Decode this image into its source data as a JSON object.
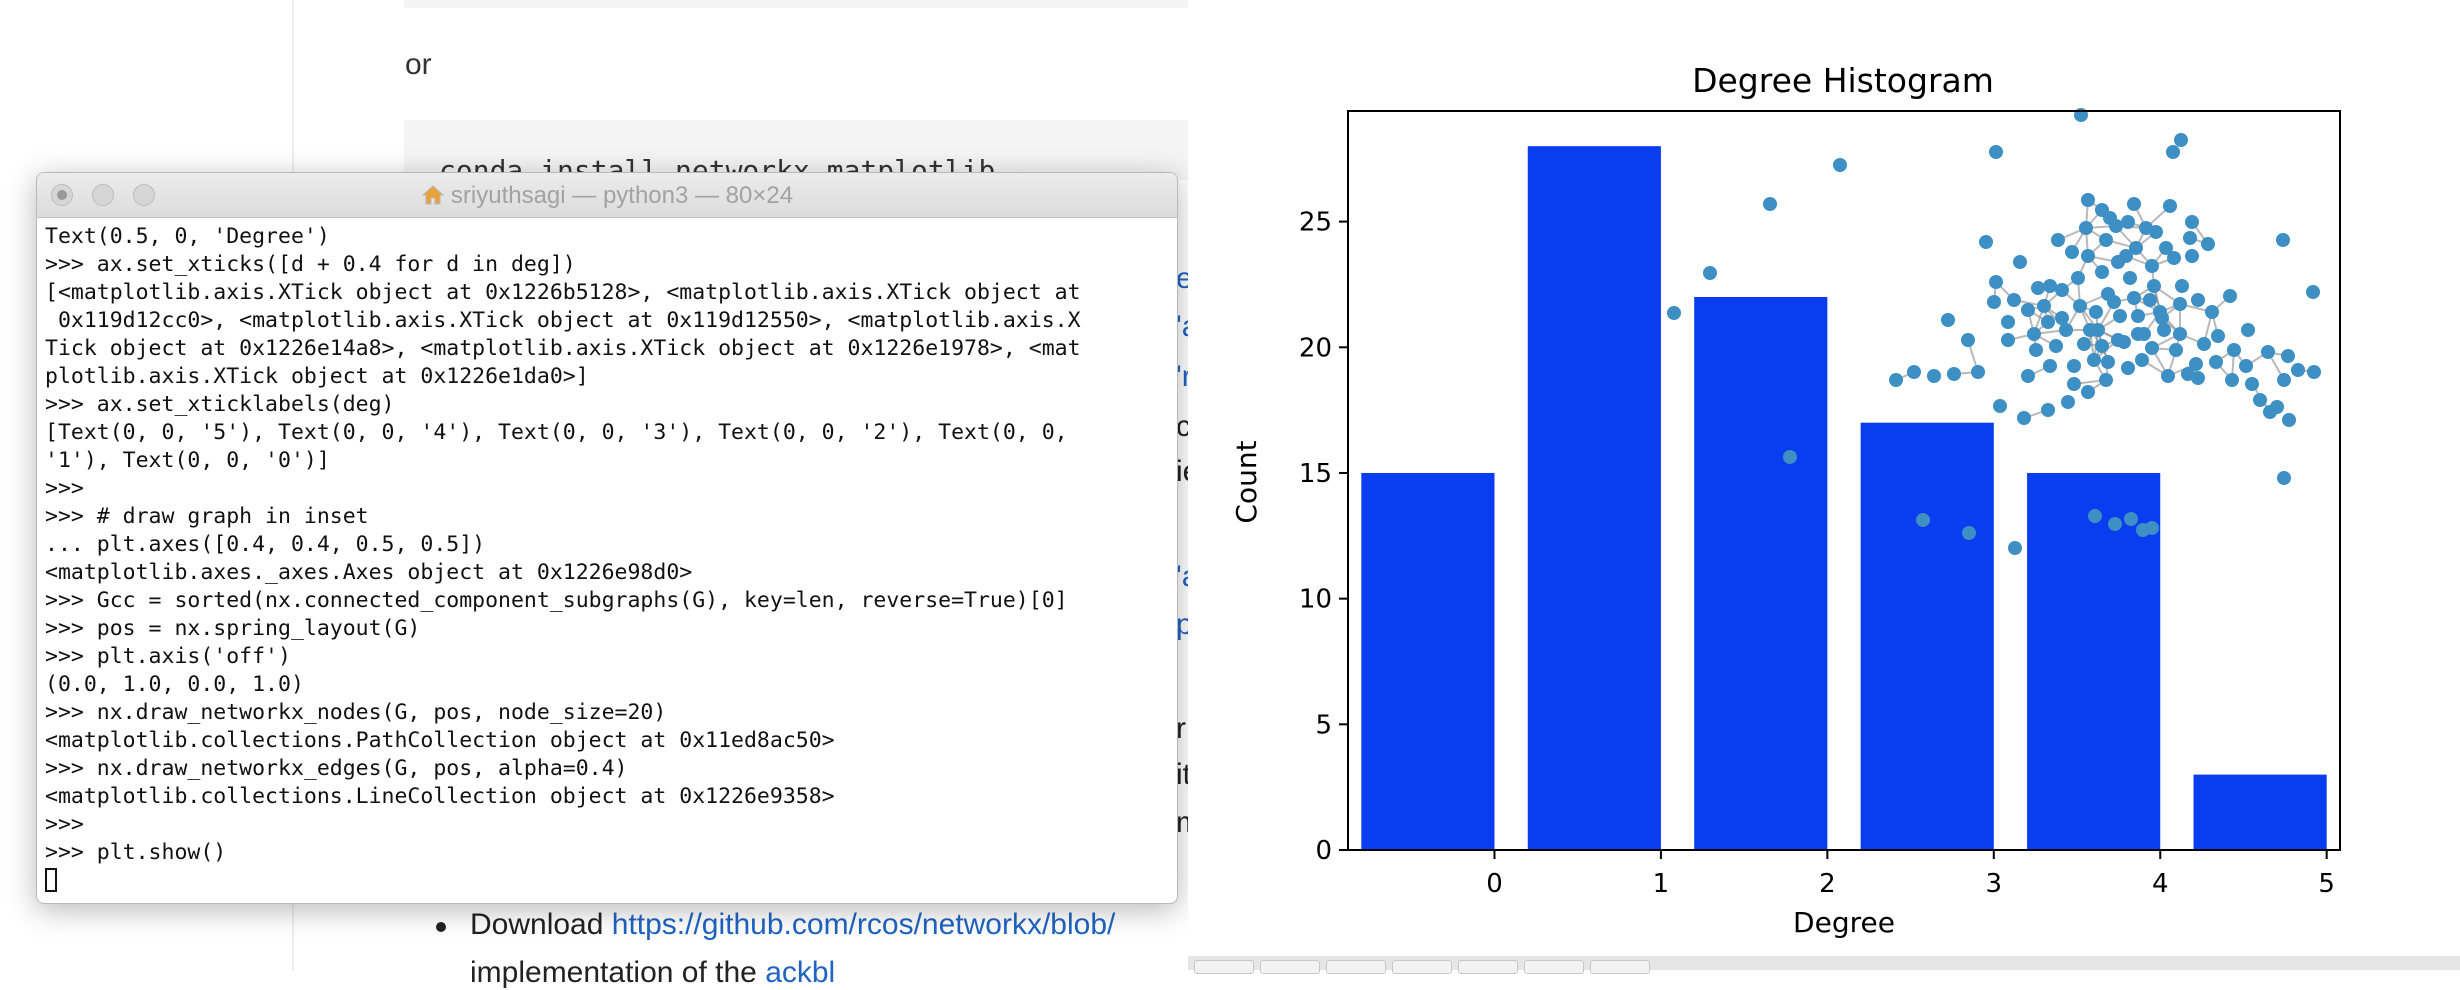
{
  "webpage": {
    "para_or": "or",
    "install_cmd": "conda install networkx matplotlib",
    "download_prefix": "Download ",
    "download_link": "https://github.com/rcos/networkx/blob/",
    "next_line_prefix": "implementation of the",
    "next_line_link": "ackbl"
  },
  "terminal": {
    "title": "sriyuthsagi — python3 — 80×24",
    "lines": [
      "Text(0.5, 0, 'Degree')",
      ">>> ax.set_xticks([d + 0.4 for d in deg])",
      "[<matplotlib.axis.XTick object at 0x1226b5128>, <matplotlib.axis.XTick object at",
      " 0x119d12cc0>, <matplotlib.axis.XTick object at 0x119d12550>, <matplotlib.axis.X",
      "Tick object at 0x1226e14a8>, <matplotlib.axis.XTick object at 0x1226e1978>, <mat",
      "plotlib.axis.XTick object at 0x1226e1da0>]",
      ">>> ax.set_xticklabels(deg)",
      "[Text(0, 0, '5'), Text(0, 0, '4'), Text(0, 0, '3'), Text(0, 0, '2'), Text(0, 0,",
      "'1'), Text(0, 0, '0')]",
      ">>>",
      ">>> # draw graph in inset",
      "... plt.axes([0.4, 0.4, 0.5, 0.5])",
      "<matplotlib.axes._axes.Axes object at 0x1226e98d0>",
      ">>> Gcc = sorted(nx.connected_component_subgraphs(G), key=len, reverse=True)[0]",
      ">>> pos = nx.spring_layout(G)",
      ">>> plt.axis('off')",
      "(0.0, 1.0, 0.0, 1.0)",
      ">>> nx.draw_networkx_nodes(G, pos, node_size=20)",
      "<matplotlib.collections.PathCollection object at 0x11ed8ac50>",
      ">>> nx.draw_networkx_edges(G, pos, alpha=0.4)",
      "<matplotlib.collections.LineCollection object at 0x1226e9358>",
      ">>>",
      ">>> plt.show()"
    ]
  },
  "chart_data": {
    "type": "bar",
    "title": "Degree Histogram",
    "xlabel": "Degree",
    "ylabel": "Count",
    "x_tick_labels": [
      "0",
      "1",
      "2",
      "3",
      "4",
      "5"
    ],
    "y_ticks": [
      0,
      5,
      10,
      15,
      20,
      25
    ],
    "ylim": [
      0,
      29.4
    ],
    "bar_color": "#0a3cf0",
    "values": [
      15,
      28,
      22,
      17,
      15,
      3
    ],
    "inset": {
      "type": "network-graph",
      "node_color": "#3d8fc4",
      "edge_color": "#8a8a8a"
    }
  }
}
